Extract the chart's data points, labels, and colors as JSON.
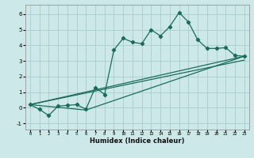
{
  "title": "",
  "xlabel": "Humidex (Indice chaleur)",
  "ylabel": "",
  "background_color": "#cce8e8",
  "grid_color": "#aacccc",
  "line_color": "#1a6b5a",
  "xlim": [
    -0.5,
    23.5
  ],
  "ylim": [
    -1.4,
    6.6
  ],
  "xticks": [
    0,
    1,
    2,
    3,
    4,
    5,
    6,
    7,
    8,
    9,
    10,
    11,
    12,
    13,
    14,
    15,
    16,
    17,
    18,
    19,
    20,
    21,
    22,
    23
  ],
  "yticks": [
    -1,
    0,
    1,
    2,
    3,
    4,
    5,
    6
  ],
  "line1_x": [
    0,
    1,
    2,
    3,
    4,
    5,
    6,
    7,
    8,
    9,
    10,
    11,
    12,
    13,
    14,
    15,
    16,
    17,
    18,
    19,
    20,
    21,
    22,
    23
  ],
  "line1_y": [
    0.2,
    -0.1,
    -0.5,
    0.1,
    0.15,
    0.2,
    -0.1,
    1.3,
    0.85,
    3.7,
    4.45,
    4.2,
    4.1,
    5.0,
    4.6,
    5.2,
    6.1,
    5.5,
    4.35,
    3.8,
    3.8,
    3.85,
    3.35,
    3.3
  ],
  "line2_x": [
    0,
    6,
    23
  ],
  "line2_y": [
    0.2,
    -0.15,
    3.3
  ],
  "line3_x": [
    0,
    23
  ],
  "line3_y": [
    0.2,
    3.3
  ],
  "line4_x": [
    0,
    23
  ],
  "line4_y": [
    0.2,
    3.05
  ]
}
